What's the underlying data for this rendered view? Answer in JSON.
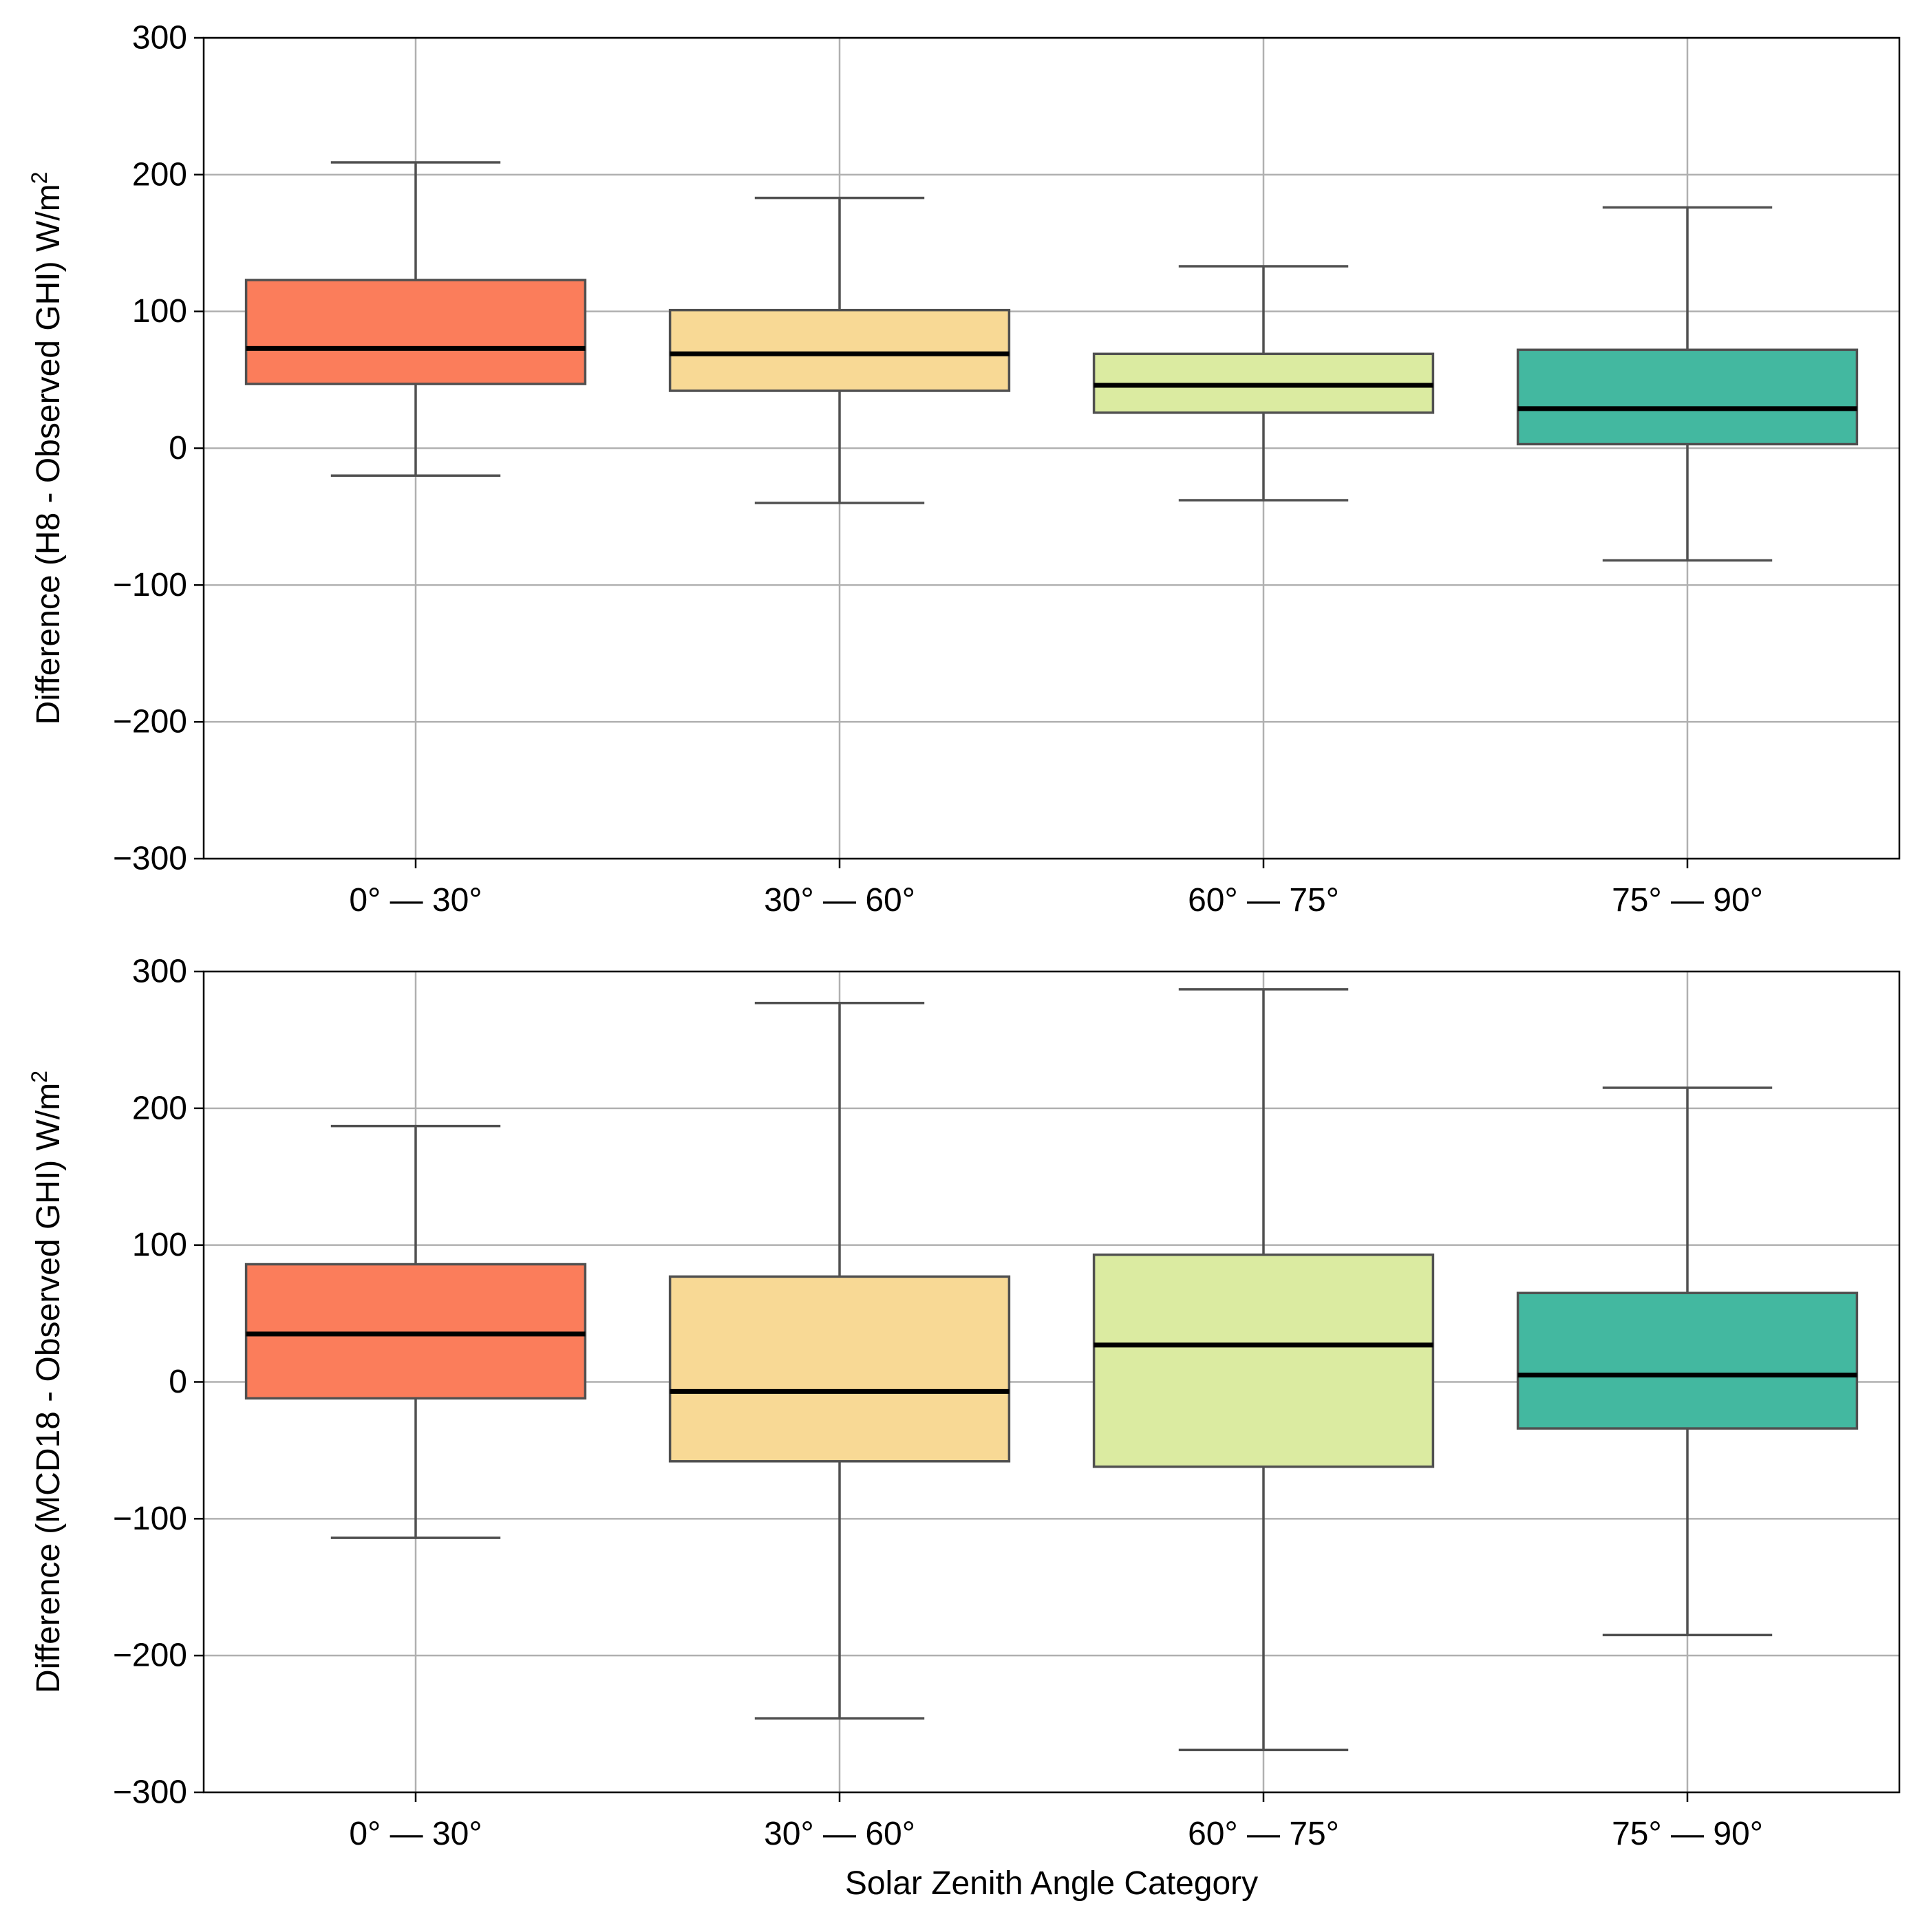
{
  "chart_data": [
    {
      "type": "box",
      "ylabel": "Difference (H8 - Observed GHI)  W/m",
      "ylabel_sup": "2",
      "xlabel": "",
      "ylim": [
        -300,
        300
      ],
      "yticks": [
        300,
        200,
        100,
        0,
        -100,
        -200,
        -300
      ],
      "ytick_labels": [
        "300",
        "200",
        "100",
        "0",
        "−100",
        "−200",
        "−300"
      ],
      "grid": true,
      "categories": [
        "0° — 30°",
        "30° — 60°",
        "60° — 75°",
        "75° — 90°"
      ],
      "colors": [
        "#fb7d5b",
        "#f8d995",
        "#dbeba1",
        "#43b8a0"
      ],
      "boxes": [
        {
          "whisker_low": -20,
          "q1": 47,
          "median": 73,
          "q3": 123,
          "whisker_high": 209
        },
        {
          "whisker_low": -40,
          "q1": 42,
          "median": 69,
          "q3": 101,
          "whisker_high": 183
        },
        {
          "whisker_low": -38,
          "q1": 26,
          "median": 46,
          "q3": 69,
          "whisker_high": 133
        },
        {
          "whisker_low": -82,
          "q1": 3,
          "median": 29,
          "q3": 72,
          "whisker_high": 176
        }
      ]
    },
    {
      "type": "box",
      "ylabel": "Difference (MCD18 - Observed GHI)  W/m",
      "ylabel_sup": "2",
      "xlabel": "Solar Zenith Angle Category",
      "ylim": [
        -300,
        300
      ],
      "yticks": [
        300,
        200,
        100,
        0,
        -100,
        -200,
        -300
      ],
      "ytick_labels": [
        "300",
        "200",
        "100",
        "0",
        "−100",
        "−200",
        "−300"
      ],
      "grid": true,
      "categories": [
        "0° — 30°",
        "30° — 60°",
        "60° — 75°",
        "75° — 90°"
      ],
      "colors": [
        "#fb7d5b",
        "#f8d995",
        "#dbeba1",
        "#43b8a0"
      ],
      "boxes": [
        {
          "whisker_low": -114,
          "q1": -12,
          "median": 35,
          "q3": 86,
          "whisker_high": 187
        },
        {
          "whisker_low": -246,
          "q1": -58,
          "median": -7,
          "q3": 77,
          "whisker_high": 277
        },
        {
          "whisker_low": -269,
          "q1": -62,
          "median": 27,
          "q3": 93,
          "whisker_high": 287
        },
        {
          "whisker_low": -185,
          "q1": -34,
          "median": 5,
          "q3": 65,
          "whisker_high": 215
        }
      ]
    }
  ]
}
